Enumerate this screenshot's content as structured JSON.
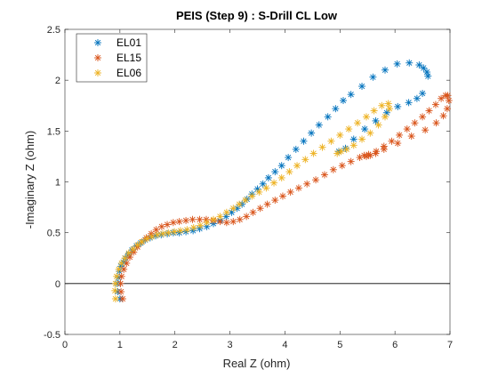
{
  "chart_data": {
    "type": "scatter",
    "title": "PEIS (Step 9) : S-Drill CL Low",
    "xlabel": "Real Z (ohm)",
    "ylabel": "-Imaginary Z (ohm)",
    "xlim": [
      0,
      7
    ],
    "ylim": [
      -0.5,
      2.5
    ],
    "xticks": [
      0,
      1,
      2,
      3,
      4,
      5,
      6,
      7
    ],
    "yticks": [
      -0.5,
      0,
      0.5,
      1,
      1.5,
      2,
      2.5
    ],
    "xtick_labels": [
      "0",
      "1",
      "2",
      "3",
      "4",
      "5",
      "6",
      "7"
    ],
    "ytick_labels": [
      "-0.5",
      "0",
      "0.5",
      "1",
      "1.5",
      "2",
      "2.5"
    ],
    "grid": false,
    "zero_line": 0,
    "legend_position": "top-left",
    "marker": "*",
    "series": [
      {
        "name": "EL01",
        "color": "#0072BD",
        "x": [
          1.0,
          0.96,
          0.95,
          0.97,
          0.99,
          1.02,
          1.06,
          1.1,
          1.16,
          1.22,
          1.3,
          1.38,
          1.46,
          1.55,
          1.65,
          1.75,
          1.86,
          1.97,
          2.08,
          2.2,
          2.33,
          2.45,
          2.58,
          2.7,
          2.82,
          2.93,
          3.03,
          3.13,
          3.22,
          3.31,
          3.4,
          3.5,
          3.6,
          3.7,
          3.82,
          3.94,
          4.06,
          4.2,
          4.34,
          4.48,
          4.62,
          4.78,
          4.92,
          5.06,
          5.2,
          5.4,
          5.6,
          5.82,
          6.04,
          6.26,
          6.44,
          6.52,
          6.58,
          6.6,
          6.5,
          6.4,
          6.25,
          6.05,
          5.85,
          5.65,
          5.45,
          5.25,
          5.1,
          4.98
        ],
        "y": [
          -0.15,
          -0.08,
          0.0,
          0.06,
          0.12,
          0.17,
          0.21,
          0.25,
          0.29,
          0.33,
          0.37,
          0.4,
          0.43,
          0.45,
          0.47,
          0.48,
          0.49,
          0.5,
          0.5,
          0.51,
          0.52,
          0.54,
          0.56,
          0.59,
          0.62,
          0.66,
          0.7,
          0.74,
          0.78,
          0.83,
          0.88,
          0.93,
          0.98,
          1.04,
          1.1,
          1.16,
          1.24,
          1.32,
          1.4,
          1.48,
          1.56,
          1.64,
          1.72,
          1.8,
          1.86,
          1.94,
          2.03,
          2.1,
          2.16,
          2.17,
          2.15,
          2.12,
          2.08,
          2.04,
          1.87,
          1.82,
          1.78,
          1.74,
          1.68,
          1.6,
          1.52,
          1.42,
          1.33,
          1.3
        ]
      },
      {
        "name": "EL15",
        "color": "#D95319",
        "x": [
          1.05,
          1.02,
          1.01,
          1.03,
          1.07,
          1.12,
          1.18,
          1.25,
          1.32,
          1.4,
          1.48,
          1.57,
          1.66,
          1.76,
          1.86,
          1.97,
          2.08,
          2.2,
          2.32,
          2.45,
          2.57,
          2.7,
          2.82,
          2.94,
          3.06,
          3.18,
          3.3,
          3.42,
          3.55,
          3.68,
          3.82,
          3.96,
          4.1,
          4.25,
          4.4,
          4.56,
          4.72,
          4.88,
          5.04,
          5.2,
          5.36,
          5.52,
          5.66,
          5.8,
          5.94,
          6.08,
          6.22,
          6.36,
          6.5,
          6.62,
          6.74,
          6.84,
          6.92,
          6.96,
          6.98,
          6.95,
          6.88,
          6.75,
          6.55,
          6.3,
          6.05,
          5.8,
          5.65,
          5.55,
          5.48,
          5.44
        ],
        "y": [
          -0.15,
          -0.08,
          0.0,
          0.07,
          0.14,
          0.2,
          0.26,
          0.31,
          0.36,
          0.41,
          0.45,
          0.49,
          0.53,
          0.56,
          0.58,
          0.6,
          0.61,
          0.62,
          0.63,
          0.63,
          0.63,
          0.62,
          0.61,
          0.6,
          0.61,
          0.63,
          0.66,
          0.7,
          0.74,
          0.78,
          0.82,
          0.86,
          0.9,
          0.94,
          0.98,
          1.02,
          1.07,
          1.12,
          1.16,
          1.2,
          1.24,
          1.27,
          1.3,
          1.35,
          1.4,
          1.46,
          1.52,
          1.58,
          1.64,
          1.7,
          1.76,
          1.82,
          1.85,
          1.85,
          1.8,
          1.72,
          1.65,
          1.58,
          1.51,
          1.45,
          1.38,
          1.32,
          1.28,
          1.26,
          1.25,
          1.26
        ]
      },
      {
        "name": "EL06",
        "color": "#EDB120",
        "x": [
          0.92,
          0.91,
          0.92,
          0.94,
          0.98,
          1.03,
          1.09,
          1.16,
          1.24,
          1.32,
          1.4,
          1.49,
          1.58,
          1.68,
          1.78,
          1.88,
          1.99,
          2.1,
          2.22,
          2.34,
          2.46,
          2.58,
          2.7,
          2.82,
          2.94,
          3.06,
          3.17,
          3.28,
          3.4,
          3.53,
          3.66,
          3.8,
          3.94,
          4.08,
          4.22,
          4.37,
          4.52,
          4.68,
          4.84,
          5.0,
          5.16,
          5.32,
          5.48,
          5.62,
          5.76,
          5.88,
          5.9,
          5.82,
          5.7,
          5.55,
          5.4,
          5.25,
          5.12,
          5.02,
          4.95
        ],
        "y": [
          -0.15,
          -0.07,
          0.0,
          0.07,
          0.14,
          0.2,
          0.25,
          0.3,
          0.34,
          0.38,
          0.41,
          0.44,
          0.46,
          0.48,
          0.49,
          0.5,
          0.51,
          0.52,
          0.53,
          0.55,
          0.57,
          0.6,
          0.63,
          0.66,
          0.7,
          0.74,
          0.78,
          0.82,
          0.86,
          0.9,
          0.94,
          0.99,
          1.04,
          1.1,
          1.16,
          1.22,
          1.28,
          1.34,
          1.4,
          1.46,
          1.52,
          1.58,
          1.64,
          1.7,
          1.75,
          1.77,
          1.72,
          1.64,
          1.56,
          1.48,
          1.42,
          1.36,
          1.32,
          1.3,
          1.28
        ]
      }
    ]
  }
}
